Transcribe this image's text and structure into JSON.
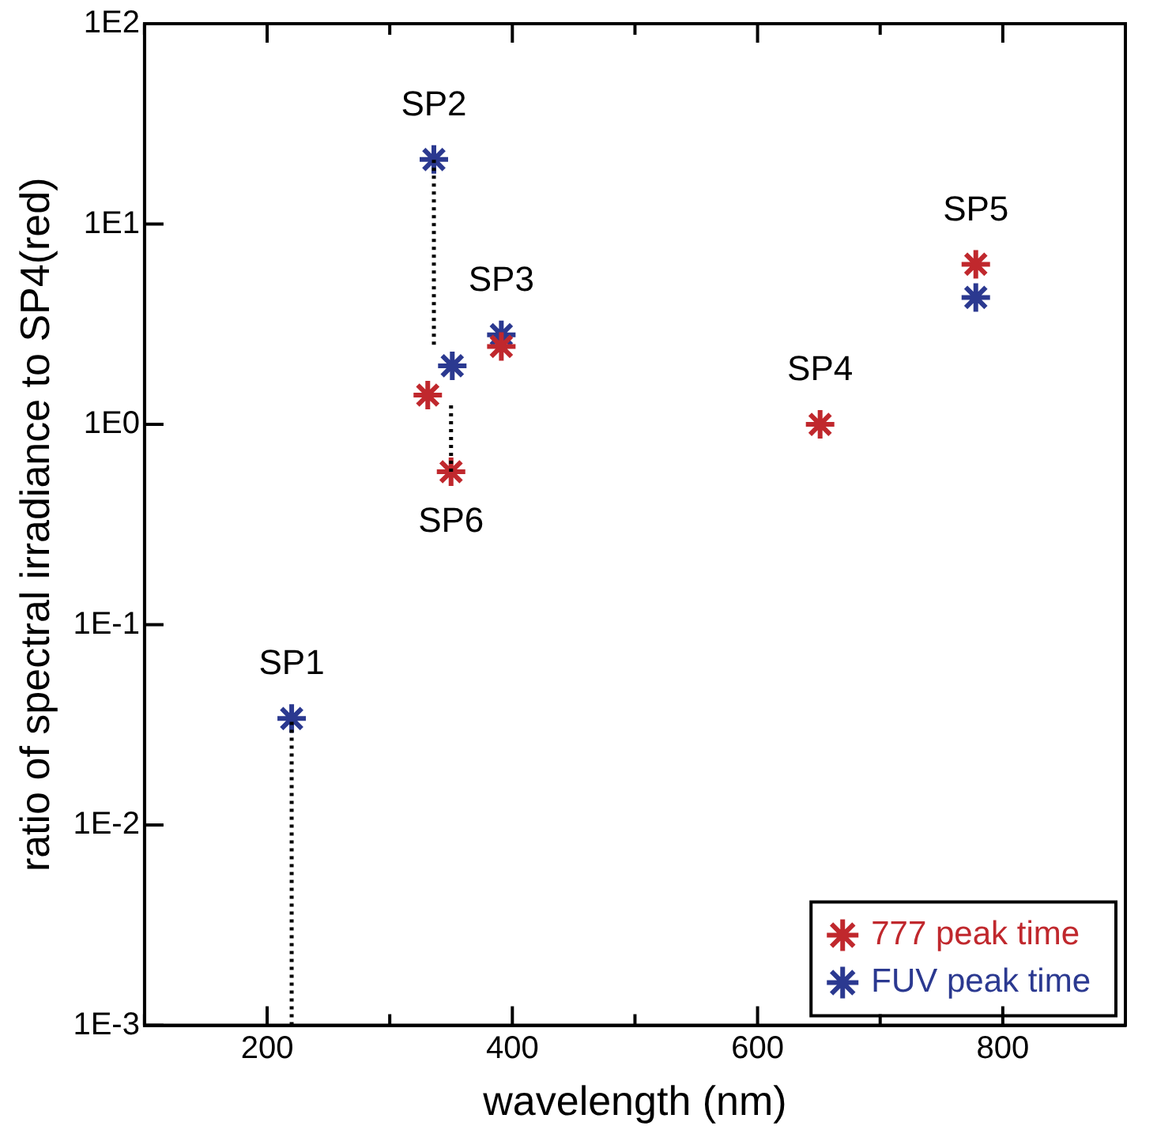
{
  "chart_data": {
    "type": "scatter",
    "xlabel": "wavelength (nm)",
    "ylabel": "ratio of spectral irradiance to SP4(red)",
    "xlim": [
      100,
      900
    ],
    "xticks": [
      {
        "value": 100,
        "label": null
      },
      200,
      {
        "value": 300,
        "label": null
      },
      400,
      {
        "value": 500,
        "label": null
      },
      600,
      {
        "value": 700,
        "label": null
      },
      800,
      {
        "value": 900,
        "label": null
      }
    ],
    "ylim": [
      0.001,
      100
    ],
    "yticks": [
      {
        "value": 0.001,
        "label": "1E-3"
      },
      {
        "value": 0.01,
        "label": "1E-2"
      },
      {
        "value": 0.1,
        "label": "1E-1"
      },
      {
        "value": 1,
        "label": "1E0"
      },
      {
        "value": 10,
        "label": "1E1"
      },
      {
        "value": 100,
        "label": "1E2"
      }
    ],
    "log": "y",
    "grid": false,
    "legend": "bottom right",
    "marker": "cross",
    "series": [
      {
        "type": "line",
        "color": "#000000",
        "line_style": "dotted",
        "marker": "none",
        "x": [
          220,
          220
        ],
        "values": [
          0.001,
          0.034
        ]
      },
      {
        "type": "line",
        "color": "#000000",
        "line_style": "dotted",
        "marker": "none",
        "x": [
          336,
          336
        ],
        "values": [
          2.5,
          21
        ]
      },
      {
        "type": "line",
        "color": "#000000",
        "line_style": "dotted",
        "marker": "none",
        "x": [
          350,
          350
        ],
        "values": [
          0.58,
          1.25
        ]
      },
      {
        "name": "777 peak time",
        "color": "#c0282d",
        "x": [
          331,
          350,
          391,
          651,
          778
        ],
        "values": [
          1.4,
          0.58,
          2.45,
          1,
          6.3
        ]
      },
      {
        "name": "FUV peak time",
        "color": "#2b3990",
        "x": [
          220,
          336,
          351,
          391,
          778
        ],
        "values": [
          0.034,
          21,
          1.96,
          2.8,
          4.3
        ]
      }
    ],
    "annotations": [
      {
        "text": "SP1",
        "x": 220,
        "y": 0.034
      },
      {
        "text": "SP2",
        "x": 336,
        "y": 21
      },
      {
        "text": "SP3",
        "x": 391,
        "y": 2.8
      },
      {
        "text": "SP4",
        "x": 651,
        "y": 1
      },
      {
        "text": "SP5",
        "x": 778,
        "y": 6.3
      },
      {
        "text": "SP6",
        "x": 350,
        "y": 0.58
      }
    ]
  }
}
